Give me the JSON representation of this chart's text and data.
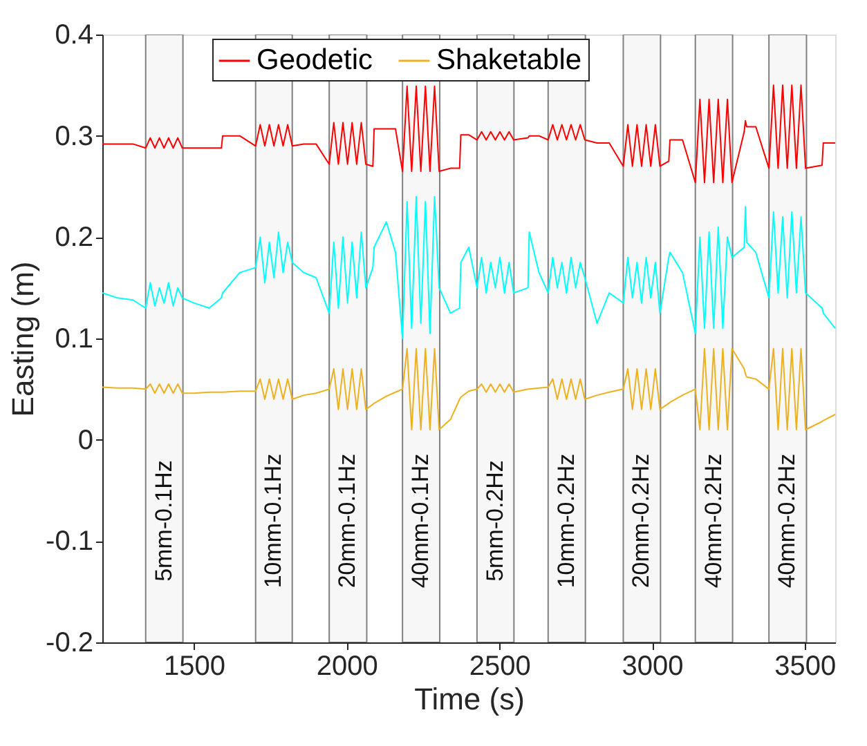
{
  "chart_data": {
    "type": "line",
    "xlabel": "Time (s)",
    "ylabel": "Easting (m)",
    "xlim": [
      1200,
      3600
    ],
    "ylim": [
      -0.2,
      0.4
    ],
    "xticks": [
      1500,
      2000,
      2500,
      3000,
      3500
    ],
    "yticks": [
      -0.2,
      -0.1,
      0,
      0.1,
      0.2,
      0.3,
      0.4
    ],
    "grid": false,
    "legend": "top",
    "line_style": "solid",
    "marker": "none",
    "x": [
      1200,
      1250,
      1300,
      1342,
      1357,
      1372,
      1387,
      1402,
      1417,
      1432,
      1447,
      1462,
      1500,
      1550,
      1590,
      1594,
      1650,
      1702,
      1717,
      1732,
      1747,
      1762,
      1777,
      1792,
      1807,
      1822,
      1860,
      1900,
      1943,
      1958,
      1973,
      1988,
      2003,
      2018,
      2033,
      2048,
      2063,
      2086,
      2090,
      2130,
      2160,
      2183,
      2198,
      2213,
      2228,
      2243,
      2258,
      2273,
      2288,
      2303,
      2340,
      2370,
      2374,
      2400,
      2427,
      2442,
      2457,
      2472,
      2487,
      2502,
      2517,
      2532,
      2547,
      2594,
      2598,
      2630,
      2660,
      2675,
      2690,
      2705,
      2720,
      2735,
      2750,
      2765,
      2780,
      2820,
      2860,
      2906,
      2921,
      2936,
      2951,
      2966,
      2981,
      2996,
      3011,
      3026,
      3055,
      3059,
      3100,
      3142,
      3157,
      3172,
      3187,
      3202,
      3217,
      3232,
      3247,
      3262,
      3302,
      3306,
      3310,
      3340,
      3383,
      3398,
      3413,
      3428,
      3443,
      3458,
      3473,
      3488,
      3503,
      3557,
      3561,
      3600
    ],
    "series": [
      {
        "name": "Geodetic",
        "color": "#ff0000",
        "values": [
          0.292,
          0.292,
          0.292,
          0.288,
          0.298,
          0.288,
          0.298,
          0.288,
          0.298,
          0.288,
          0.298,
          0.288,
          0.288,
          0.288,
          0.288,
          0.3,
          0.3,
          0.29,
          0.311,
          0.29,
          0.311,
          0.29,
          0.311,
          0.29,
          0.311,
          0.29,
          0.292,
          0.292,
          0.272,
          0.313,
          0.272,
          0.313,
          0.272,
          0.313,
          0.272,
          0.313,
          0.272,
          0.27,
          0.307,
          0.307,
          0.307,
          0.265,
          0.349,
          0.265,
          0.349,
          0.265,
          0.349,
          0.265,
          0.349,
          0.265,
          0.268,
          0.268,
          0.301,
          0.301,
          0.296,
          0.304,
          0.296,
          0.304,
          0.296,
          0.304,
          0.296,
          0.304,
          0.296,
          0.298,
          0.3,
          0.3,
          0.296,
          0.311,
          0.296,
          0.311,
          0.296,
          0.311,
          0.296,
          0.311,
          0.296,
          0.293,
          0.293,
          0.27,
          0.311,
          0.27,
          0.311,
          0.27,
          0.311,
          0.27,
          0.311,
          0.27,
          0.275,
          0.296,
          0.296,
          0.254,
          0.336,
          0.254,
          0.336,
          0.254,
          0.336,
          0.254,
          0.336,
          0.254,
          0.304,
          0.315,
          0.309,
          0.309,
          0.268,
          0.35,
          0.268,
          0.35,
          0.268,
          0.35,
          0.268,
          0.35,
          0.268,
          0.271,
          0.293,
          0.293
        ]
      },
      {
        "color": "#00ffff",
        "values": [
          0.145,
          0.14,
          0.138,
          0.13,
          0.155,
          0.132,
          0.15,
          0.135,
          0.155,
          0.132,
          0.15,
          0.14,
          0.135,
          0.13,
          0.14,
          0.145,
          0.165,
          0.17,
          0.2,
          0.155,
          0.195,
          0.16,
          0.205,
          0.165,
          0.195,
          0.175,
          0.165,
          0.16,
          0.125,
          0.195,
          0.13,
          0.2,
          0.135,
          0.195,
          0.14,
          0.205,
          0.15,
          0.17,
          0.19,
          0.215,
          0.185,
          0.1,
          0.235,
          0.11,
          0.24,
          0.115,
          0.235,
          0.105,
          0.24,
          0.15,
          0.125,
          0.13,
          0.175,
          0.19,
          0.15,
          0.18,
          0.145,
          0.175,
          0.15,
          0.18,
          0.145,
          0.175,
          0.145,
          0.15,
          0.205,
          0.165,
          0.145,
          0.18,
          0.15,
          0.175,
          0.145,
          0.18,
          0.15,
          0.175,
          0.16,
          0.115,
          0.145,
          0.135,
          0.18,
          0.14,
          0.175,
          0.135,
          0.18,
          0.14,
          0.175,
          0.125,
          0.18,
          0.185,
          0.165,
          0.105,
          0.2,
          0.11,
          0.205,
          0.11,
          0.21,
          0.11,
          0.2,
          0.18,
          0.19,
          0.23,
          0.195,
          0.185,
          0.14,
          0.225,
          0.145,
          0.22,
          0.14,
          0.225,
          0.145,
          0.22,
          0.145,
          0.13,
          0.125,
          0.11
        ]
      },
      {
        "name": "Shaketable",
        "color": "#edb120",
        "values": [
          0.052,
          0.051,
          0.051,
          0.05,
          0.055,
          0.046,
          0.055,
          0.046,
          0.055,
          0.046,
          0.055,
          0.046,
          0.046,
          0.047,
          0.047,
          0.047,
          0.048,
          0.048,
          0.06,
          0.04,
          0.06,
          0.04,
          0.06,
          0.04,
          0.06,
          0.04,
          0.044,
          0.046,
          0.05,
          0.07,
          0.03,
          0.07,
          0.03,
          0.07,
          0.03,
          0.07,
          0.03,
          0.035,
          0.036,
          0.043,
          0.047,
          0.05,
          0.09,
          0.01,
          0.09,
          0.01,
          0.09,
          0.01,
          0.09,
          0.01,
          0.02,
          0.04,
          0.042,
          0.048,
          0.05,
          0.055,
          0.047,
          0.055,
          0.047,
          0.055,
          0.047,
          0.055,
          0.047,
          0.05,
          0.05,
          0.051,
          0.052,
          0.06,
          0.04,
          0.06,
          0.04,
          0.06,
          0.04,
          0.06,
          0.04,
          0.044,
          0.047,
          0.05,
          0.07,
          0.03,
          0.07,
          0.03,
          0.07,
          0.03,
          0.07,
          0.03,
          0.036,
          0.037,
          0.044,
          0.05,
          0.01,
          0.09,
          0.01,
          0.09,
          0.01,
          0.09,
          0.01,
          0.09,
          0.07,
          0.065,
          0.062,
          0.06,
          0.05,
          0.09,
          0.01,
          0.09,
          0.01,
          0.09,
          0.01,
          0.09,
          0.01,
          0.018,
          0.019,
          0.025
        ]
      }
    ],
    "bands": [
      {
        "axis": "x",
        "from": 1342,
        "to": 1464,
        "label": "5mm-0.1Hz"
      },
      {
        "axis": "x",
        "from": 1702,
        "to": 1822,
        "label": "10mm-0.1Hz"
      },
      {
        "axis": "x",
        "from": 1943,
        "to": 2066,
        "label": "20mm-0.1Hz"
      },
      {
        "axis": "x",
        "from": 2183,
        "to": 2305,
        "label": "40mm-0.1Hz"
      },
      {
        "axis": "x",
        "from": 2427,
        "to": 2548,
        "label": "5mm-0.2Hz"
      },
      {
        "axis": "x",
        "from": 2660,
        "to": 2782,
        "label": "10mm-0.2Hz"
      },
      {
        "axis": "x",
        "from": 2906,
        "to": 3028,
        "label": "20mm-0.2Hz"
      },
      {
        "axis": "x",
        "from": 3142,
        "to": 3264,
        "label": "40mm-0.2Hz"
      },
      {
        "axis": "x",
        "from": 3383,
        "to": 3506,
        "label": "40mm-0.2Hz"
      }
    ]
  }
}
